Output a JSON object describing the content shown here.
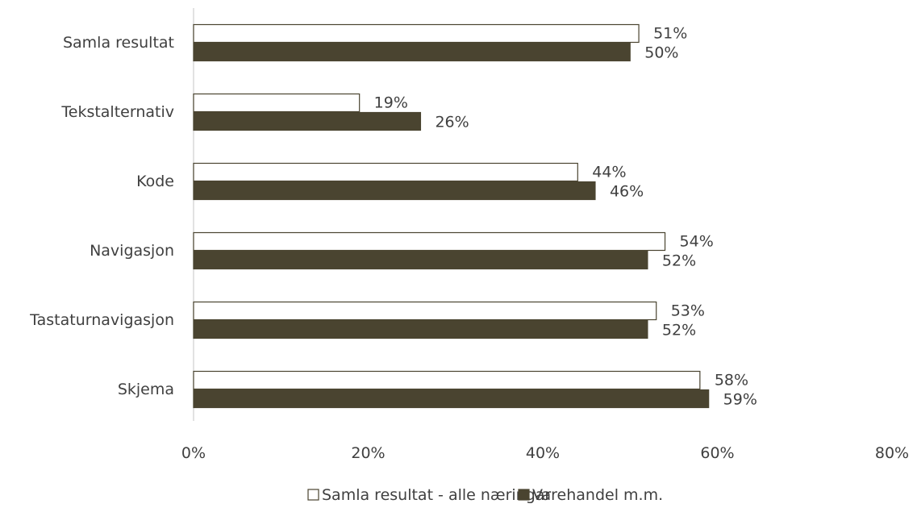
{
  "chart_data": {
    "type": "bar",
    "orientation": "horizontal",
    "title": "",
    "xlabel": "",
    "ylabel": "",
    "categories": [
      "Samla resultat",
      "Tekstalternativ",
      "Kode",
      "Navigasjon",
      "Tastaturnavigasjon",
      "Skjema"
    ],
    "series": [
      {
        "name": "Samla resultat - alle næringar",
        "values": [
          51,
          19,
          44,
          54,
          53,
          58
        ],
        "labels": [
          "51%",
          "19%",
          "44%",
          "54%",
          "53%",
          "58%"
        ],
        "fill": "#ffffff",
        "stroke": "#4a4430"
      },
      {
        "name": "Varehandel m.m.",
        "values": [
          50,
          26,
          46,
          52,
          52,
          59
        ],
        "labels": [
          "50%",
          "26%",
          "46%",
          "52%",
          "52%",
          "59%"
        ],
        "fill": "#4a4430",
        "stroke": "#4a4430"
      }
    ],
    "xlim": [
      0,
      80
    ],
    "xticks": [
      0,
      20,
      40,
      60,
      80
    ],
    "xtick_labels": [
      "0%",
      "20%",
      "40%",
      "60%",
      "80%"
    ],
    "grid": false,
    "legend_position": "bottom"
  }
}
